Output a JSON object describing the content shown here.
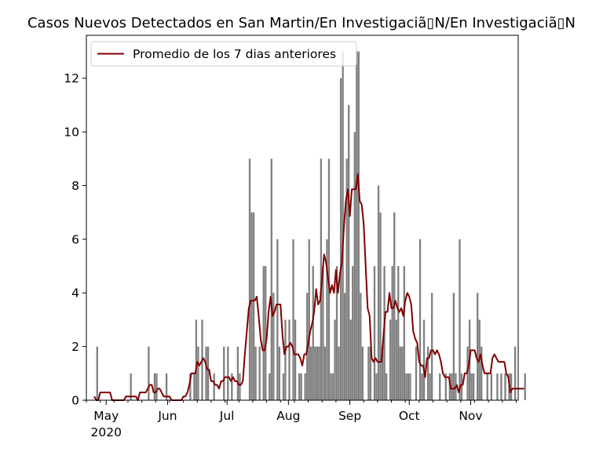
{
  "chart_data": {
    "type": "bar",
    "title": "Casos Nuevos Detectados en San Martin/En Investigaciã▯N/En Investigaciã▯N",
    "xlabel": "",
    "ylabel": "",
    "ylim": [
      0,
      13.6
    ],
    "yticks": [
      0,
      2,
      4,
      6,
      8,
      10,
      12
    ],
    "start_date": "2020-04-21",
    "end_date": "2020-11-25",
    "xticks": [
      {
        "date": "2020-05-01",
        "label": "May",
        "sublabel": "2020"
      },
      {
        "date": "2020-06-01",
        "label": "Jun",
        "sublabel": ""
      },
      {
        "date": "2020-07-01",
        "label": "Jul",
        "sublabel": ""
      },
      {
        "date": "2020-08-01",
        "label": "Aug",
        "sublabel": ""
      },
      {
        "date": "2020-09-01",
        "label": "Sep",
        "sublabel": ""
      },
      {
        "date": "2020-10-01",
        "label": "Oct",
        "sublabel": ""
      },
      {
        "date": "2020-11-01",
        "label": "Nov",
        "sublabel": ""
      }
    ],
    "bar_color": "#808080",
    "line_color": "#800000",
    "legend_position": "upper-left",
    "series": [
      {
        "name": "",
        "kind": "bar",
        "values": [
          0,
          0,
          0,
          0,
          0,
          2,
          0,
          0,
          0,
          0,
          0,
          0,
          0,
          0,
          0,
          0,
          0,
          0,
          0,
          0,
          0,
          0,
          1,
          0,
          0,
          0,
          0,
          0,
          0,
          0,
          0,
          2,
          0,
          0,
          1,
          1,
          0,
          0,
          0,
          0,
          1,
          0,
          0,
          0,
          0,
          0,
          0,
          0,
          0,
          0,
          0,
          0,
          1,
          0,
          1,
          3,
          2,
          0,
          3,
          0,
          2,
          2,
          0,
          0,
          1,
          0,
          0,
          0,
          0,
          2,
          0,
          2,
          0,
          1,
          0,
          0,
          2,
          1,
          0,
          0,
          0,
          0,
          9,
          7,
          7,
          2,
          0,
          2,
          0,
          5,
          5,
          0,
          1,
          9,
          4,
          0,
          6,
          2,
          0,
          1,
          3,
          0,
          3,
          0,
          6,
          3,
          0,
          1,
          1,
          0,
          1,
          4,
          6,
          2,
          5,
          2,
          2,
          2,
          9,
          5,
          2,
          6,
          9,
          1,
          1,
          3,
          5,
          2,
          12,
          13,
          4,
          9,
          11,
          3,
          5,
          10,
          13,
          13,
          4,
          2,
          0,
          0,
          2,
          2,
          0,
          5,
          1,
          8,
          7,
          2,
          5,
          1,
          0,
          3,
          5,
          7,
          3,
          5,
          2,
          2,
          5,
          1,
          1,
          1,
          0,
          0,
          2,
          0,
          6,
          1,
          3,
          0,
          2,
          1,
          4,
          0,
          0,
          0,
          1,
          0,
          0,
          1,
          0,
          1,
          1,
          4,
          1,
          0,
          6,
          1,
          0,
          0,
          2,
          3,
          1,
          1,
          0,
          4,
          3,
          2,
          0,
          0,
          1,
          0,
          1,
          0,
          0,
          1,
          0,
          1,
          0,
          1,
          0,
          1,
          1,
          0,
          2,
          0,
          0,
          0,
          0,
          1
        ]
      },
      {
        "name": "Promedio de los 7 dias anteriores",
        "kind": "line",
        "values": [
          0.14,
          0,
          0,
          0.29,
          0.29,
          0.29,
          0.29,
          0.29,
          0.29,
          0,
          0,
          0,
          0,
          0,
          0,
          0,
          0.14,
          0.14,
          0.14,
          0.14,
          0.14,
          0.14,
          0,
          0.29,
          0.29,
          0.29,
          0.29,
          0.43,
          0.57,
          0.57,
          0.29,
          0.29,
          0.43,
          0.43,
          0.29,
          0.14,
          0.14,
          0.14,
          0.14,
          0,
          0,
          0,
          0,
          0,
          0,
          0.14,
          0.14,
          0.29,
          0.57,
          1,
          1,
          1,
          1.43,
          1.29,
          1.43,
          1.57,
          1.43,
          1.14,
          1.14,
          0.71,
          0.71,
          0.57,
          0.57,
          0.43,
          0.71,
          0.71,
          0.86,
          0.86,
          0.86,
          0.71,
          0.86,
          0.71,
          0.71,
          0.57,
          0.57,
          0.71,
          1.71,
          2.57,
          3.43,
          3.71,
          3.71,
          3.71,
          3.86,
          3.14,
          2.29,
          1.86,
          1.86,
          2.29,
          3.29,
          3.86,
          3.14,
          3.29,
          3.57,
          3.57,
          3.57,
          2.43,
          1.71,
          2,
          2,
          2.14,
          2,
          1.71,
          1.71,
          1.71,
          1.57,
          1.29,
          1.71,
          1.71,
          2.14,
          2.57,
          2.86,
          3.29,
          4.14,
          3.57,
          3.71,
          4.57,
          5.43,
          5.14,
          4.57,
          4,
          4.29,
          4,
          4.86,
          4,
          4.71,
          5.14,
          6.43,
          7.43,
          7.86,
          6.86,
          7.86,
          7.86,
          7.86,
          8.43,
          7.43,
          7.29,
          6.57,
          5,
          3.43,
          3.14,
          1.57,
          1.43,
          1.57,
          1.43,
          1.43,
          1.43,
          2.43,
          3.29,
          3.29,
          4,
          3.43,
          3.43,
          3.71,
          3.43,
          3.29,
          3.43,
          3.14,
          3.71,
          4,
          3.86,
          3.57,
          2.57,
          2.29,
          2.14,
          1.43,
          1.29,
          1.29,
          0.86,
          1.57,
          1.57,
          1.86,
          1.86,
          1.71,
          1.86,
          1.71,
          1.43,
          1,
          0.86,
          0.86,
          0.86,
          0.43,
          0.43,
          0.43,
          0.57,
          0.29,
          0.57,
          0.57,
          1,
          1,
          1.29,
          1.86,
          1.86,
          1.86,
          1.57,
          1.43,
          1.71,
          1.29,
          1,
          1,
          1,
          1,
          1.57,
          1.71,
          1.57,
          1.43,
          1.43,
          1.43,
          1.43,
          1,
          0.86,
          0.29,
          0.43,
          0.43,
          0.43,
          0.43,
          0.43,
          0.43,
          0.43
        ]
      }
    ]
  }
}
